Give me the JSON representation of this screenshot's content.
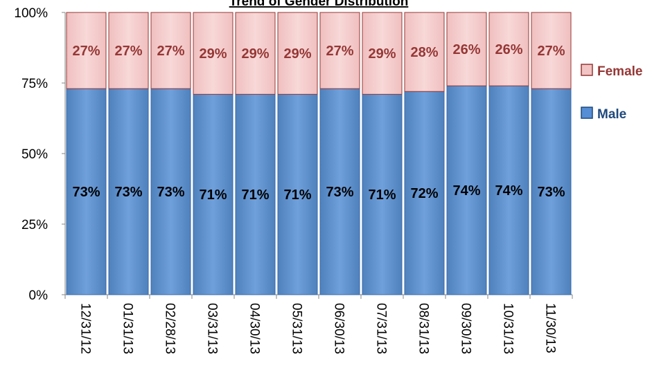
{
  "chart_data": {
    "type": "bar",
    "stacked": true,
    "title": "Trend of Gender Distribution",
    "categories": [
      "12/31/12",
      "01/31/13",
      "02/28/13",
      "03/31/13",
      "04/30/13",
      "05/31/13",
      "06/30/13",
      "07/31/13",
      "08/31/13",
      "09/30/13",
      "10/31/13",
      "11/30/13"
    ],
    "series": [
      {
        "name": "Male",
        "values": [
          73,
          73,
          73,
          71,
          71,
          71,
          73,
          71,
          72,
          74,
          74,
          73
        ],
        "labels": [
          "73%",
          "73%",
          "73%",
          "71%",
          "71%",
          "71%",
          "73%",
          "71%",
          "72%",
          "74%",
          "74%",
          "73%"
        ],
        "color": "#558ED5"
      },
      {
        "name": "Female",
        "values": [
          27,
          27,
          27,
          29,
          29,
          29,
          27,
          29,
          28,
          26,
          26,
          27
        ],
        "labels": [
          "27%",
          "27%",
          "27%",
          "29%",
          "29%",
          "29%",
          "27%",
          "29%",
          "28%",
          "26%",
          "26%",
          "27%"
        ],
        "color": "#F2C4C4"
      }
    ],
    "yticks": [
      "0%",
      "25%",
      "50%",
      "75%",
      "100%"
    ],
    "ylim": [
      0,
      100
    ],
    "legend_position": "right",
    "grid": false,
    "colors": {
      "male_fill": "#558ED5",
      "male_edge": "#3A6BA8",
      "female_fill": "#F2C4C4",
      "female_edge": "#953735",
      "female_label": "#953735",
      "male_label": "#000000"
    }
  }
}
